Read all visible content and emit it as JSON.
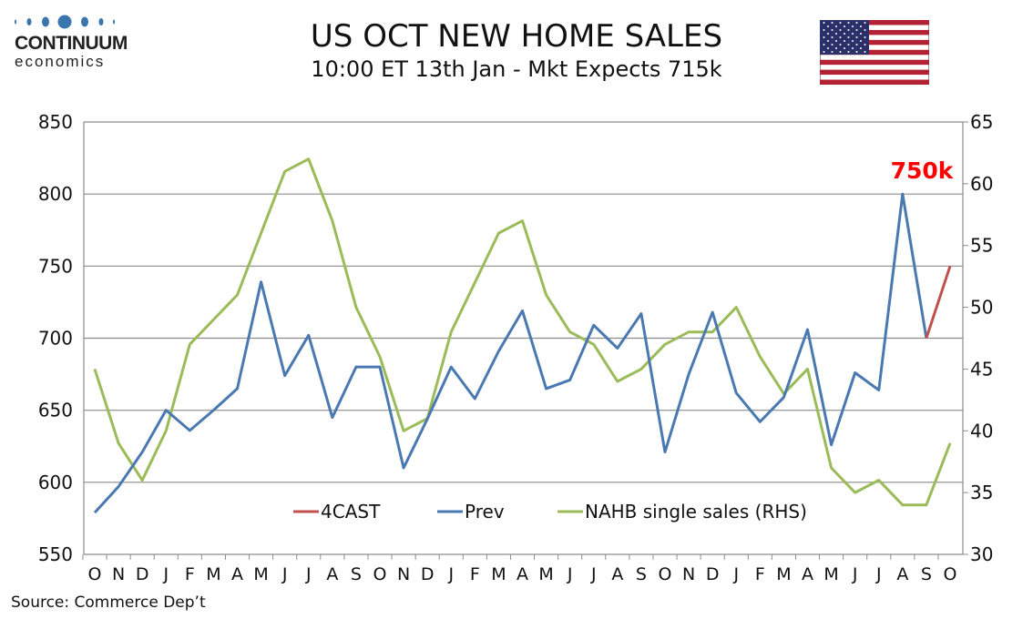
{
  "header": {
    "title": "US OCT NEW HOME SALES",
    "subtitle": "10:00 ET 13th Jan - Mkt Expects 715k",
    "logo_line1": "CONTINUUM",
    "logo_line2": "economics"
  },
  "footer": {
    "source": "Source: Commerce Dep’t"
  },
  "colors": {
    "prev": "#4a78b0",
    "nahb": "#9bbb59",
    "forecast": "#c0504d",
    "annotation": "#ff0000"
  },
  "chart_data": {
    "type": "line",
    "title": "US OCT NEW HOME SALES",
    "categories": [
      "O",
      "N",
      "D",
      "J",
      "F",
      "M",
      "A",
      "M",
      "J",
      "J",
      "A",
      "S",
      "O",
      "N",
      "D",
      "J",
      "F",
      "M",
      "A",
      "M",
      "J",
      "J",
      "A",
      "S",
      "O",
      "N",
      "D",
      "J",
      "F",
      "M",
      "A",
      "M",
      "J",
      "J",
      "A",
      "S",
      "O"
    ],
    "y_left": {
      "min": 550,
      "max": 850,
      "step": 50,
      "ticks": [
        "550",
        "600",
        "650",
        "700",
        "750",
        "800",
        "850"
      ]
    },
    "y_right": {
      "min": 30,
      "max": 65,
      "step": 5,
      "ticks": [
        "30",
        "35",
        "40",
        "45",
        "50",
        "55",
        "60",
        "65"
      ]
    },
    "grid": true,
    "legend_position": "bottom-center",
    "series": [
      {
        "name": "4CAST",
        "axis": "left",
        "values": [
          null,
          null,
          null,
          null,
          null,
          null,
          null,
          null,
          null,
          null,
          null,
          null,
          null,
          null,
          null,
          null,
          null,
          null,
          null,
          null,
          null,
          null,
          null,
          null,
          null,
          null,
          null,
          null,
          null,
          null,
          null,
          null,
          null,
          null,
          null,
          700,
          750
        ]
      },
      {
        "name": "Prev",
        "axis": "left",
        "values": [
          579,
          597,
          621,
          650,
          636,
          650,
          665,
          739,
          674,
          702,
          645,
          680,
          680,
          610,
          644,
          680,
          658,
          691,
          719,
          665,
          671,
          709,
          693,
          717,
          621,
          675,
          718,
          662,
          642,
          659,
          706,
          626,
          676,
          664,
          800,
          700,
          null
        ]
      },
      {
        "name": "NAHB single sales (RHS)",
        "axis": "right",
        "values": [
          45,
          39,
          36,
          40,
          47,
          49,
          51,
          56,
          61,
          62,
          57,
          50,
          46,
          40,
          41,
          48,
          52,
          56,
          57,
          51,
          48,
          47,
          44,
          45,
          47,
          48,
          48,
          50,
          46,
          43,
          45,
          37,
          35,
          36,
          34,
          34,
          39
        ]
      }
    ],
    "annotations": [
      {
        "text": "750k",
        "category_index": 36,
        "value": 750
      }
    ]
  }
}
